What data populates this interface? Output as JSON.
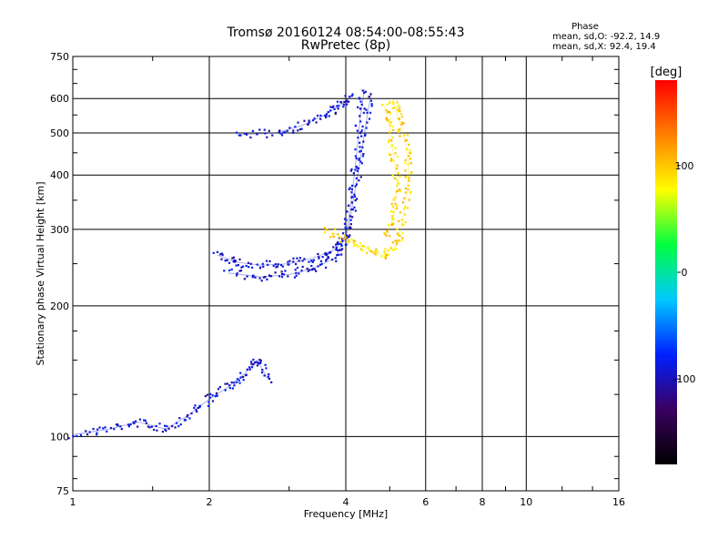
{
  "chart_data": {
    "type": "scatter",
    "title": "Tromsø 20160124 08:54:00-08:55:43",
    "subtitle": "RwPretec (8p)",
    "xlabel": "Frequency [MHz]",
    "ylabel": "Stationary phase Virtual Height [km]",
    "x_scale": "log",
    "y_scale": "log",
    "xlim": [
      1,
      16
    ],
    "ylim": [
      75,
      750
    ],
    "x_ticks": [
      1,
      2,
      4,
      6,
      8,
      10,
      16
    ],
    "x_tick_labels": [
      "1",
      "2",
      "4",
      "6",
      "8",
      "10",
      "16"
    ],
    "y_ticks": [
      75,
      100,
      200,
      300,
      400,
      500,
      600,
      750
    ],
    "y_tick_labels": [
      "75",
      "100",
      "200",
      "300",
      "400",
      "500",
      "600",
      "750"
    ],
    "grid": true,
    "stats": {
      "title": "Phase",
      "o_line": "mean, sd,O: -92.2, 14.9",
      "x_line": "mean, sd,X:  92.4, 19.4"
    },
    "colorbar": {
      "label": "[deg]",
      "range": [
        -180,
        180
      ],
      "ticks": [
        100,
        0,
        -100
      ],
      "tick_labels": [
        "100",
        "0",
        "-100"
      ],
      "colors": [
        "#000000",
        "#3a0060",
        "#0020ff",
        "#00c8ff",
        "#00ff40",
        "#ffff00",
        "#ff8000",
        "#ff0000"
      ]
    },
    "series": [
      {
        "mode": "O",
        "phase_deg": -92.2,
        "traces": [
          {
            "points": [
              [
                1.0,
                101
              ],
              [
                1.2,
                104
              ],
              [
                1.4,
                108
              ],
              [
                1.6,
                104
              ],
              [
                1.8,
                112
              ],
              [
                2.0,
                122
              ],
              [
                2.2,
                130
              ],
              [
                2.4,
                140
              ],
              [
                2.55,
                150
              ],
              [
                2.7,
                135
              ]
            ]
          },
          {
            "points": [
              [
                2.08,
                262
              ],
              [
                2.3,
                252
              ],
              [
                2.6,
                248
              ],
              [
                3.0,
                250
              ],
              [
                3.4,
                258
              ],
              [
                3.8,
                270
              ],
              [
                4.0,
                290
              ],
              [
                4.1,
                340
              ],
              [
                4.2,
                420
              ],
              [
                4.3,
                540
              ],
              [
                4.4,
                630
              ]
            ]
          },
          {
            "points": [
              [
                2.2,
                238
              ],
              [
                2.6,
                233
              ],
              [
                3.0,
                236
              ],
              [
                3.4,
                244
              ],
              [
                3.8,
                258
              ],
              [
                4.05,
                300
              ],
              [
                4.25,
                400
              ],
              [
                4.4,
                500
              ],
              [
                4.55,
                620
              ]
            ]
          },
          {
            "points": [
              [
                2.3,
                495
              ],
              [
                2.8,
                500
              ],
              [
                3.2,
                520
              ],
              [
                3.6,
                550
              ],
              [
                3.9,
                580
              ],
              [
                4.1,
                605
              ]
            ]
          }
        ]
      },
      {
        "mode": "X",
        "phase_deg": 92.4,
        "traces": [
          {
            "points": [
              [
                3.6,
                300
              ],
              [
                4.0,
                285
              ],
              [
                4.4,
                270
              ],
              [
                4.8,
                262
              ],
              [
                5.1,
                270
              ],
              [
                5.3,
                300
              ],
              [
                5.45,
                360
              ],
              [
                5.5,
                420
              ],
              [
                5.4,
                480
              ],
              [
                5.2,
                550
              ],
              [
                5.05,
                600
              ]
            ]
          },
          {
            "points": [
              [
                4.9,
                290
              ],
              [
                5.1,
                320
              ],
              [
                5.2,
                380
              ],
              [
                5.1,
                440
              ],
              [
                5.0,
                520
              ],
              [
                4.85,
                580
              ]
            ]
          }
        ]
      }
    ]
  }
}
